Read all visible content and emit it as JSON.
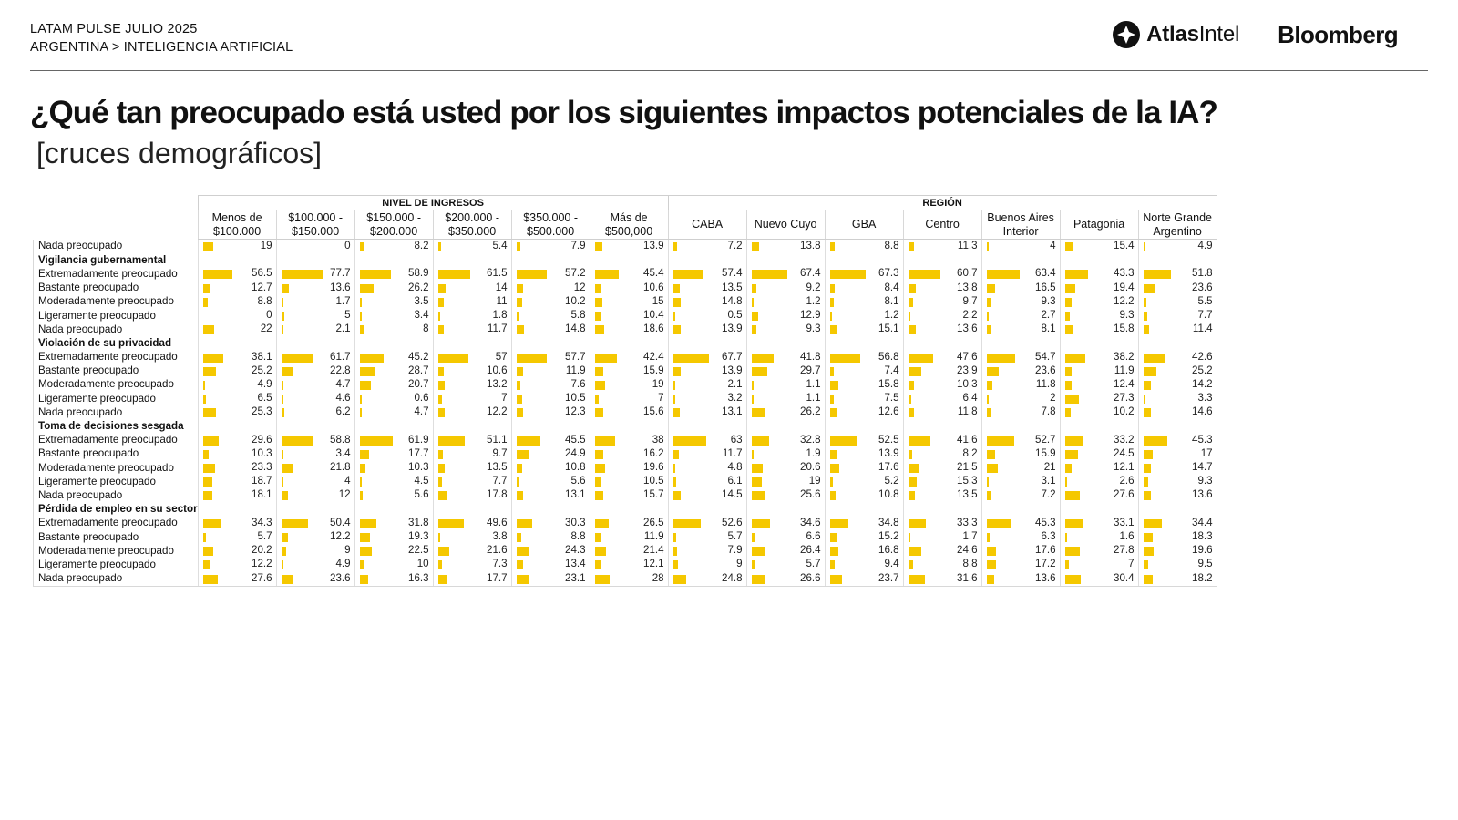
{
  "header": {
    "kicker_line1": "LATAM PULSE JULIO 2025",
    "kicker_line2": "ARGENTINA > INTELIGENCIA ARTIFICIAL",
    "atlas_logo_text_a": "Atlas",
    "atlas_logo_text_b": "Intel",
    "bloomberg_logo": "Bloomberg"
  },
  "title": "¿Qué tan preocupado está usted por los siguientes impactos potenciales de la IA?",
  "subtitle": "[cruces demográficos]",
  "colors": {
    "bar": "#f5c800",
    "text": "#111111"
  },
  "table": {
    "groups": [
      {
        "label": "NIVEL DE INGRESOS",
        "span": 6
      },
      {
        "label": "REGIÓN",
        "span": 7
      }
    ],
    "columns": [
      [
        "Menos de",
        "$100.000"
      ],
      [
        "$100.000 -",
        "$150.000"
      ],
      [
        "$150.000 -",
        "$200.000"
      ],
      [
        "$200.000 -",
        "$350.000"
      ],
      [
        "$350.000 -",
        "$500.000"
      ],
      [
        "Más de",
        "$500,000"
      ],
      [
        "CABA",
        ""
      ],
      [
        "Nuevo Cuyo",
        ""
      ],
      [
        "GBA",
        ""
      ],
      [
        "Centro",
        ""
      ],
      [
        "Buenos Aires",
        "Interior"
      ],
      [
        "Patagonia",
        ""
      ],
      [
        "Norte Grande",
        "Argentino"
      ]
    ],
    "rows": [
      {
        "label": "Nada preocupado",
        "values": [
          19,
          0,
          8.2,
          5.4,
          7.9,
          13.9,
          7.2,
          13.8,
          8.8,
          11.3,
          4,
          15.4,
          4.9
        ]
      },
      {
        "label": "Vigilancia gubernamental",
        "section": true
      },
      {
        "label": "Extremadamente preocupado",
        "values": [
          56.5,
          77.7,
          58.9,
          61.5,
          57.2,
          45.4,
          57.4,
          67.4,
          67.3,
          60.7,
          63.4,
          43.3,
          51.8
        ]
      },
      {
        "label": "Bastante preocupado",
        "values": [
          12.7,
          13.6,
          26.2,
          14,
          12,
          10.6,
          13.5,
          9.2,
          8.4,
          13.8,
          16.5,
          19.4,
          23.6
        ]
      },
      {
        "label": "Moderadamente preocupado",
        "values": [
          8.8,
          1.7,
          3.5,
          11,
          10.2,
          15,
          14.8,
          1.2,
          8.1,
          9.7,
          9.3,
          12.2,
          5.5
        ]
      },
      {
        "label": "Ligeramente preocupado",
        "values": [
          0,
          5,
          3.4,
          1.8,
          5.8,
          10.4,
          0.5,
          12.9,
          1.2,
          2.2,
          2.7,
          9.3,
          7.7
        ]
      },
      {
        "label": "Nada preocupado",
        "values": [
          22,
          2.1,
          8,
          11.7,
          14.8,
          18.6,
          13.9,
          9.3,
          15.1,
          13.6,
          8.1,
          15.8,
          11.4
        ]
      },
      {
        "label": "Violación de su privacidad",
        "section": true
      },
      {
        "label": "Extremadamente preocupado",
        "values": [
          38.1,
          61.7,
          45.2,
          57,
          57.7,
          42.4,
          67.7,
          41.8,
          56.8,
          47.6,
          54.7,
          38.2,
          42.6
        ]
      },
      {
        "label": "Bastante preocupado",
        "values": [
          25.2,
          22.8,
          28.7,
          10.6,
          11.9,
          15.9,
          13.9,
          29.7,
          7.4,
          23.9,
          23.6,
          11.9,
          25.2
        ]
      },
      {
        "label": "Moderadamente preocupado",
        "values": [
          4.9,
          4.7,
          20.7,
          13.2,
          7.6,
          19,
          2.1,
          1.1,
          15.8,
          10.3,
          11.8,
          12.4,
          14.2
        ]
      },
      {
        "label": "Ligeramente preocupado",
        "values": [
          6.5,
          4.6,
          0.6,
          7,
          10.5,
          7,
          3.2,
          1.1,
          7.5,
          6.4,
          2,
          27.3,
          3.3
        ]
      },
      {
        "label": "Nada preocupado",
        "values": [
          25.3,
          6.2,
          4.7,
          12.2,
          12.3,
          15.6,
          13.1,
          26.2,
          12.6,
          11.8,
          7.8,
          10.2,
          14.6
        ]
      },
      {
        "label": "Toma de decisiones sesgada",
        "section": true
      },
      {
        "label": "Extremadamente preocupado",
        "values": [
          29.6,
          58.8,
          61.9,
          51.1,
          45.5,
          38,
          63,
          32.8,
          52.5,
          41.6,
          52.7,
          33.2,
          45.3
        ]
      },
      {
        "label": "Bastante preocupado",
        "values": [
          10.3,
          3.4,
          17.7,
          9.7,
          24.9,
          16.2,
          11.7,
          1.9,
          13.9,
          8.2,
          15.9,
          24.5,
          17
        ]
      },
      {
        "label": "Moderadamente preocupado",
        "values": [
          23.3,
          21.8,
          10.3,
          13.5,
          10.8,
          19.6,
          4.8,
          20.6,
          17.6,
          21.5,
          21,
          12.1,
          14.7
        ]
      },
      {
        "label": "Ligeramente preocupado",
        "values": [
          18.7,
          4,
          4.5,
          7.7,
          5.6,
          10.5,
          6.1,
          19,
          5.2,
          15.3,
          3.1,
          2.6,
          9.3
        ]
      },
      {
        "label": "Nada preocupado",
        "values": [
          18.1,
          12,
          5.6,
          17.8,
          13.1,
          15.7,
          14.5,
          25.6,
          10.8,
          13.5,
          7.2,
          27.6,
          13.6
        ]
      },
      {
        "label": "Pérdida de empleo en su sector",
        "section": true
      },
      {
        "label": "Extremadamente preocupado",
        "values": [
          34.3,
          50.4,
          31.8,
          49.6,
          30.3,
          26.5,
          52.6,
          34.6,
          34.8,
          33.3,
          45.3,
          33.1,
          34.4
        ]
      },
      {
        "label": "Bastante preocupado",
        "values": [
          5.7,
          12.2,
          19.3,
          3.8,
          8.8,
          11.9,
          5.7,
          6.6,
          15.2,
          1.7,
          6.3,
          1.6,
          18.3
        ]
      },
      {
        "label": "Moderadamente preocupado",
        "values": [
          20.2,
          9,
          22.5,
          21.6,
          24.3,
          21.4,
          7.9,
          26.4,
          16.8,
          24.6,
          17.6,
          27.8,
          19.6
        ]
      },
      {
        "label": "Ligeramente preocupado",
        "values": [
          12.2,
          4.9,
          10,
          7.3,
          13.4,
          12.1,
          9,
          5.7,
          9.4,
          8.8,
          17.2,
          7,
          9.5
        ]
      },
      {
        "label": "Nada preocupado",
        "values": [
          27.6,
          23.6,
          16.3,
          17.7,
          23.1,
          28,
          24.8,
          26.6,
          23.7,
          31.6,
          13.6,
          30.4,
          18.2
        ]
      }
    ]
  }
}
